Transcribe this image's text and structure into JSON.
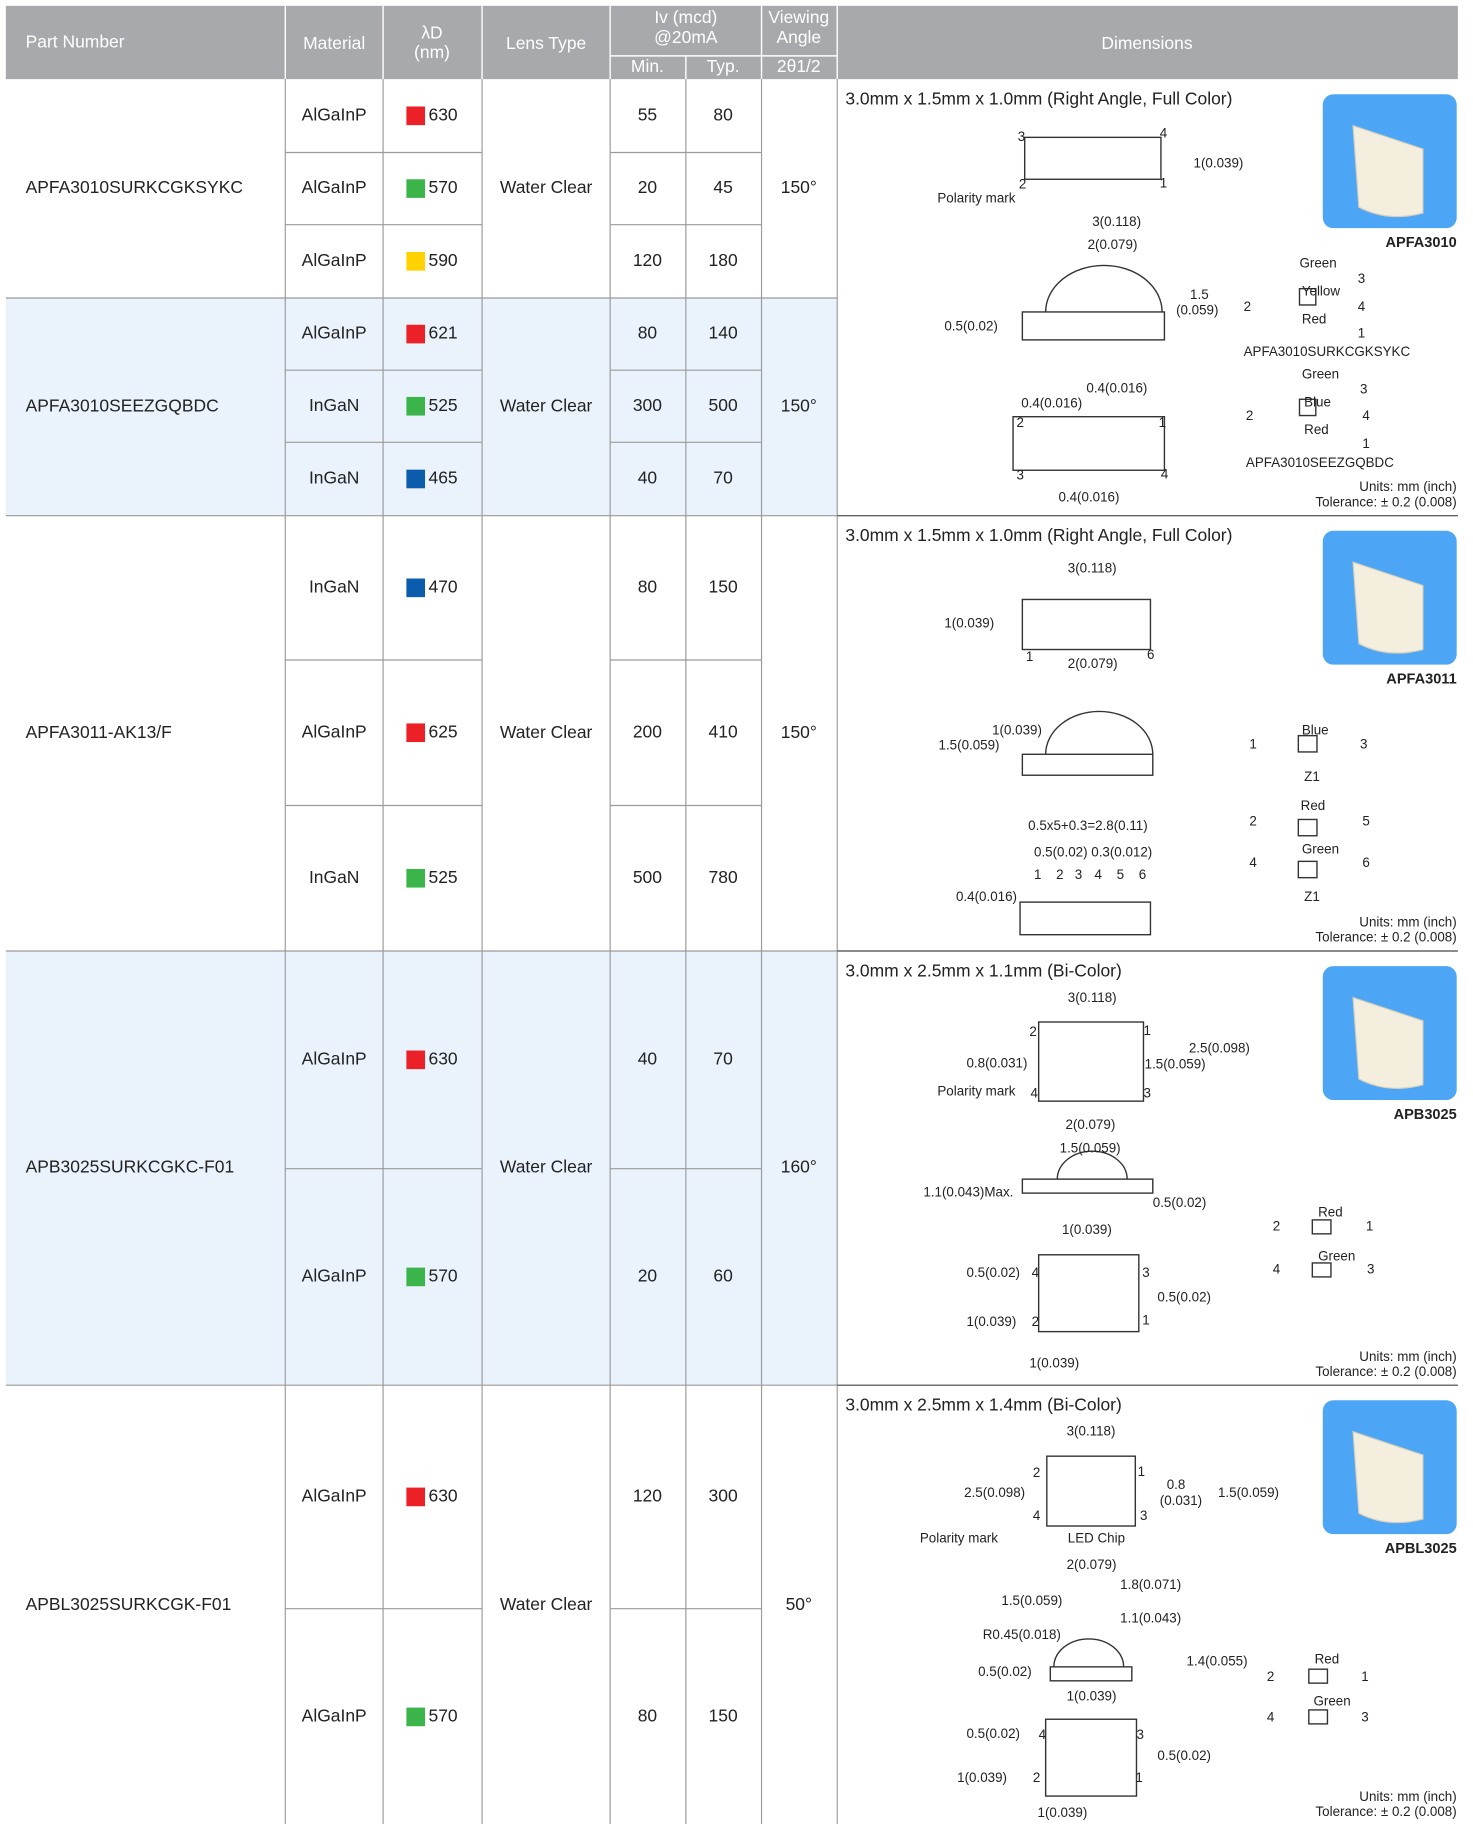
{
  "header": {
    "part_number": "Part Number",
    "material": "Material",
    "wavelength": [
      "λD",
      "(nm)"
    ],
    "lens_type": "Lens Type",
    "iv": [
      "Iv (mcd)",
      "@20mA"
    ],
    "iv_min": "Min.",
    "iv_typ": "Typ.",
    "viewing_angle": [
      "Viewing",
      "Angle"
    ],
    "viewing_angle_sub": "2θ1/2",
    "dimensions": "Dimensions"
  },
  "products": [
    {
      "part_number": "APFA3010SURKCGKSYKC",
      "lens_type": "Water Clear",
      "viewing_angle": "150°",
      "rows": [
        {
          "material": "AlGaInP",
          "color": "#ec2027",
          "wavelength": "630",
          "iv_min": "55",
          "iv_typ": "80"
        },
        {
          "material": "AlGaInP",
          "color": "#3bb44a",
          "wavelength": "570",
          "iv_min": "20",
          "iv_typ": "45"
        },
        {
          "material": "AlGaInP",
          "color": "#ffd200",
          "wavelength": "590",
          "iv_min": "120",
          "iv_typ": "180"
        }
      ]
    },
    {
      "part_number": "APFA3010SEEZGQBDC",
      "lens_type": "Water Clear",
      "viewing_angle": "150°",
      "rows": [
        {
          "material": "AlGaInP",
          "color": "#ec2027",
          "wavelength": "621",
          "iv_min": "80",
          "iv_typ": "140"
        },
        {
          "material": "InGaN",
          "color": "#3bb44a",
          "wavelength": "525",
          "iv_min": "300",
          "iv_typ": "500"
        },
        {
          "material": "InGaN",
          "color": "#0b5cad",
          "wavelength": "465",
          "iv_min": "40",
          "iv_typ": "70"
        }
      ]
    },
    {
      "part_number": "APFA3011-AK13/F",
      "lens_type": "Water Clear",
      "viewing_angle": "150°",
      "rows": [
        {
          "material": "InGaN",
          "color": "#0b5cad",
          "wavelength": "470",
          "iv_min": "80",
          "iv_typ": "150"
        },
        {
          "material": "AlGaInP",
          "color": "#ec2027",
          "wavelength": "625",
          "iv_min": "200",
          "iv_typ": "410"
        },
        {
          "material": "InGaN",
          "color": "#3bb44a",
          "wavelength": "525",
          "iv_min": "500",
          "iv_typ": "780"
        }
      ]
    },
    {
      "part_number": "APB3025SURKCGKC-F01",
      "lens_type": "Water Clear",
      "viewing_angle": "160°",
      "rows": [
        {
          "material": "AlGaInP",
          "color": "#ec2027",
          "wavelength": "630",
          "iv_min": "40",
          "iv_typ": "70"
        },
        {
          "material": "AlGaInP",
          "color": "#3bb44a",
          "wavelength": "570",
          "iv_min": "20",
          "iv_typ": "60"
        }
      ]
    },
    {
      "part_number": "APBL3025SURKCGK-F01",
      "lens_type": "Water Clear",
      "viewing_angle": "50°",
      "rows": [
        {
          "material": "AlGaInP",
          "color": "#ec2027",
          "wavelength": "630",
          "iv_min": "120",
          "iv_typ": "300"
        },
        {
          "material": "AlGaInP",
          "color": "#3bb44a",
          "wavelength": "570",
          "iv_min": "80",
          "iv_typ": "150"
        }
      ]
    }
  ],
  "dimension_blocks": [
    {
      "title": "3.0mm x 1.5mm x 1.0mm (Right Angle, Full Color)",
      "image_label": "APFA3010",
      "units": "Units: mm (inch)",
      "tolerance": "Tolerance: ± 0.2 (0.008)",
      "labels": [
        "3",
        "4",
        "1(0.039)",
        "2",
        "1",
        "Polarity mark",
        "3(0.118)",
        "2(0.079)",
        "1.5",
        "(0.059)",
        "0.5(0.02)",
        "0.4(0.016)",
        "0.4(0.016)",
        "2",
        "1",
        "3",
        "4",
        "0.4(0.016)",
        "Green",
        "3",
        "Yellow",
        "2",
        "4",
        "Red",
        "1",
        "APFA3010SURKCGKSYKC",
        "Green",
        "3",
        "Blue",
        "2",
        "4",
        "Red",
        "1",
        "APFA3010SEEZGQBDC"
      ]
    },
    {
      "title": "3.0mm x 1.5mm x 1.0mm (Right Angle, Full Color)",
      "image_label": "APFA3011",
      "units": "Units: mm (inch)",
      "tolerance": "Tolerance: ± 0.2 (0.008)",
      "labels": [
        "3(0.118)",
        "1(0.039)",
        "1",
        "2(0.079)",
        "6",
        "1(0.039)",
        "1.5(0.059)",
        "Blue",
        "1",
        "3",
        "Z1",
        "Red",
        "2",
        "5",
        "Green",
        "4",
        "6",
        "Z1",
        "0.5x5+0.3=2.8(0.11)",
        "0.5(0.02) 0.3(0.012)",
        "1",
        "2",
        "3",
        "4",
        "5",
        "6",
        "0.4(0.016)"
      ]
    },
    {
      "title": "3.0mm x 2.5mm x 1.1mm (Bi-Color)",
      "image_label": "APB3025",
      "units": "Units: mm (inch)",
      "tolerance": "Tolerance: ± 0.2 (0.008)",
      "labels": [
        "3(0.118)",
        "2",
        "1",
        "2.5(0.098)",
        "0.8(0.031)",
        "1.5(0.059)",
        "Polarity mark",
        "4",
        "3",
        "2(0.079)",
        "1.5(0.059)",
        "1.1(0.043)Max.",
        "0.5(0.02)",
        "1(0.039)",
        "Red",
        "2",
        "1",
        "Green",
        "4",
        "3",
        "0.5(0.02)",
        "4",
        "3",
        "0.5(0.02)",
        "1(0.039)",
        "2",
        "1",
        "1(0.039)"
      ]
    },
    {
      "title": "3.0mm x 2.5mm x 1.4mm (Bi-Color)",
      "image_label": "APBL3025",
      "units": "Units: mm (inch)",
      "tolerance": "Tolerance: ± 0.2 (0.008)",
      "labels": [
        "3(0.118)",
        "2",
        "1",
        "0.8",
        "(0.031)",
        "1.5(0.059)",
        "2.5(0.098)",
        "4",
        "3",
        "Polarity mark",
        "LED Chip",
        "2(0.079)",
        "1.8(0.071)",
        "1.5(0.059)",
        "1.1(0.043)",
        "R0.45(0.018)",
        "1.4(0.055)",
        "0.5(0.02)",
        "1(0.039)",
        "Red",
        "2",
        "1",
        "Green",
        "4",
        "3",
        "0.5(0.02)",
        "4",
        "3",
        "0.5(0.02)",
        "1(0.039)",
        "2",
        "1",
        "1(0.039)"
      ]
    }
  ]
}
